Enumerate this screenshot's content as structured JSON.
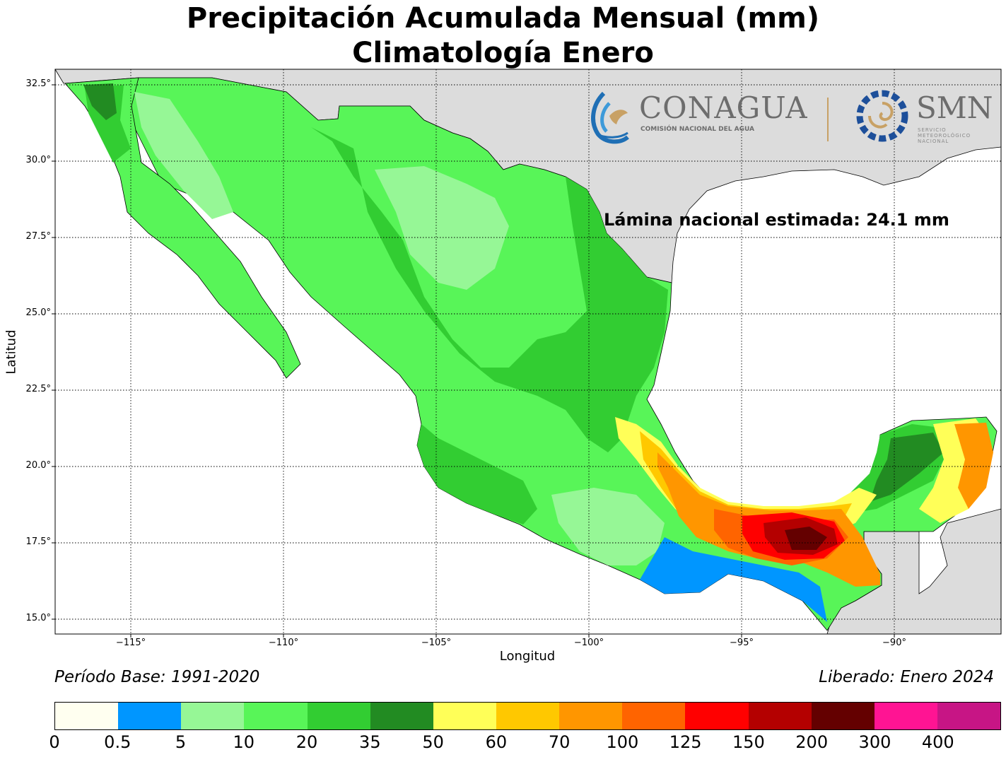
{
  "title_line1": "Precipitación Acumulada Mensual (mm)",
  "title_line2": "Climatología Enero",
  "national_label": "Lámina nacional estimada: 24.1 mm",
  "axes": {
    "xlabel": "Longitud",
    "ylabel": "Latitud",
    "lon_ticks": [
      -115,
      -110,
      -105,
      -100,
      -95,
      -90
    ],
    "lon_tick_labels": [
      "−115°",
      "−110°",
      "−105°",
      "−100°",
      "−95°",
      "−90°"
    ],
    "lat_ticks": [
      32.5,
      30.0,
      27.5,
      25.0,
      22.5,
      20.0,
      17.5,
      15.0
    ],
    "lat_tick_labels": [
      "32.5°",
      "30.0°",
      "27.5°",
      "25.0°",
      "22.5°",
      "20.0°",
      "17.5°",
      "15.0°"
    ],
    "lon_range": [
      -117.5,
      -86.5
    ],
    "lat_range": [
      14.5,
      33.0
    ],
    "grid": "dotted"
  },
  "footer": {
    "base_period": "Período Base: 1991-2020",
    "released": "Liberado: Enero 2024"
  },
  "logos": {
    "conagua": "CONAGUA",
    "conagua_sub": "COMISIÓN NACIONAL DEL AGUA",
    "smn": "SMN",
    "smn_sub": [
      "SERVICIO",
      "METEOROLÓGICO",
      "NACIONAL"
    ]
  },
  "colorbar": {
    "ticks": [
      "0",
      "0.5",
      "5",
      "10",
      "20",
      "35",
      "50",
      "60",
      "70",
      "100",
      "125",
      "150",
      "200",
      "300",
      "400"
    ],
    "colors": [
      "#fffff0",
      "#0096ff",
      "#96f796",
      "#58f558",
      "#32cd32",
      "#228b22",
      "#ffff58",
      "#ffc800",
      "#ff9600",
      "#ff6400",
      "#ff0000",
      "#b40000",
      "#640000",
      "#ff1493",
      "#c71585"
    ]
  },
  "colors": {
    "land_outside": "#dcdcdc",
    "ocean": "#ffffff"
  }
}
